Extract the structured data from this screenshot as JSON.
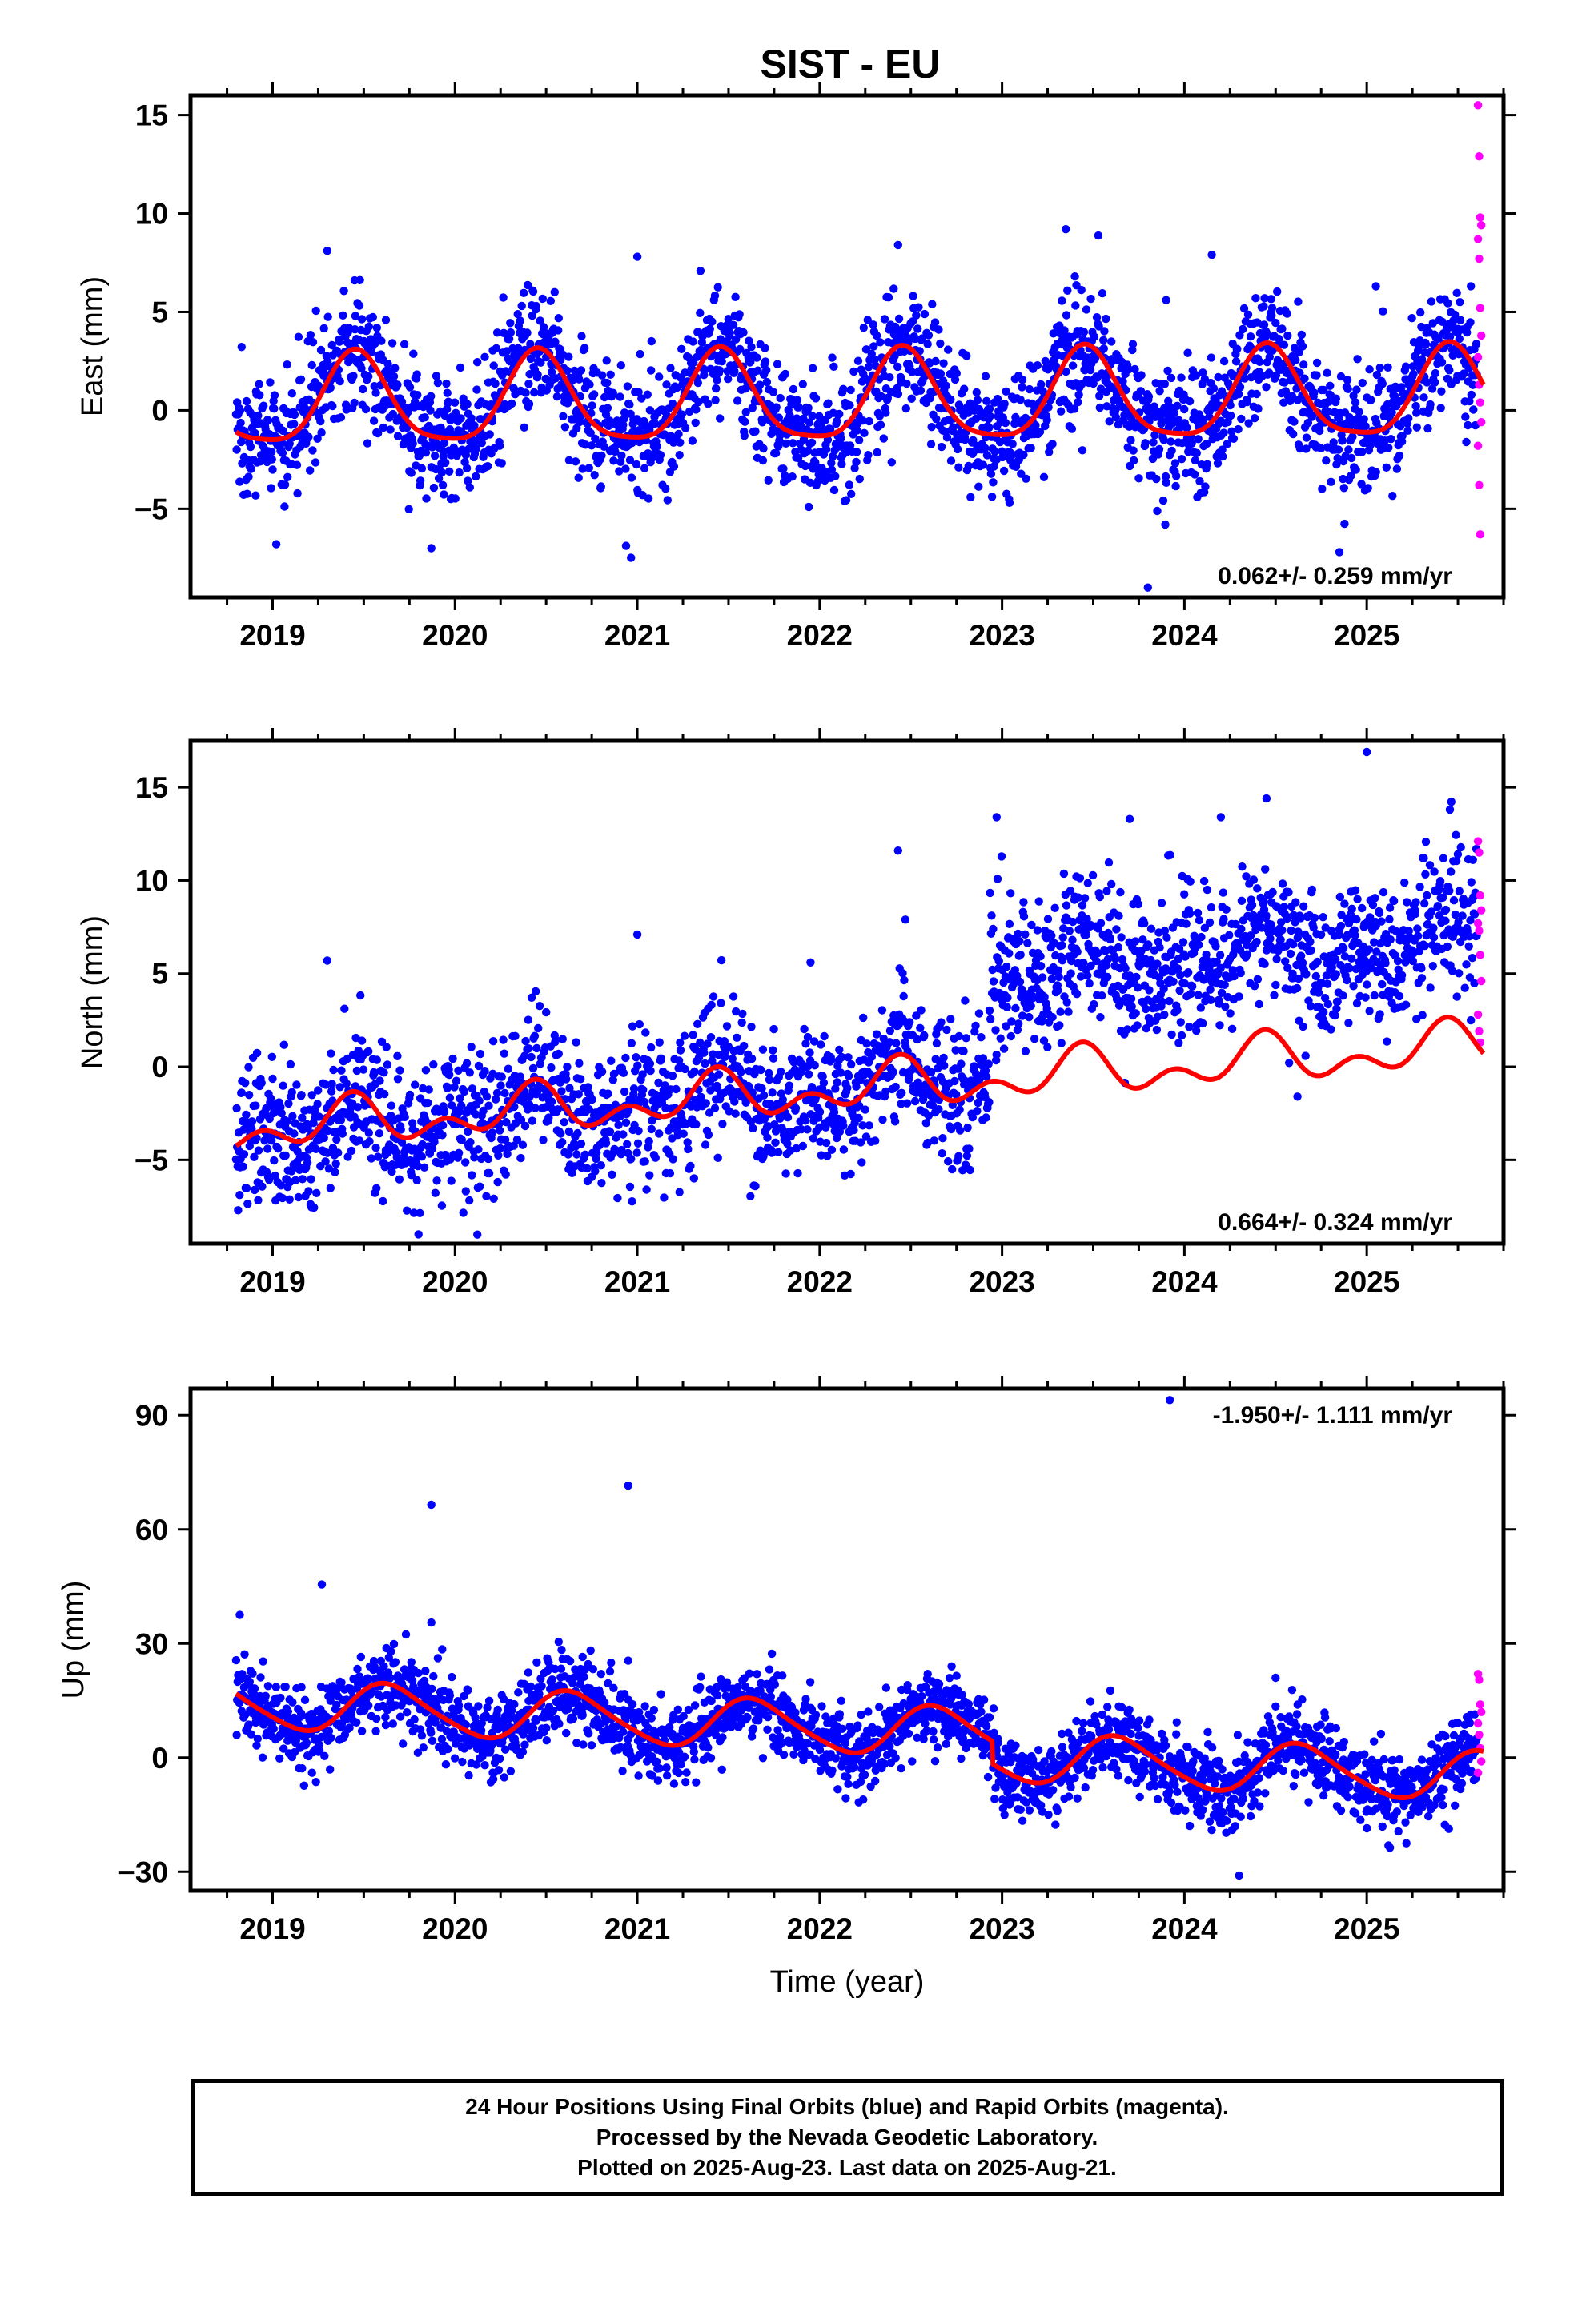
{
  "title": "SIST - EU",
  "colors": {
    "final_orbits": "#0000ff",
    "rapid_orbits": "#ff00ff",
    "model_fit": "#ff0000",
    "frame": "#000000"
  },
  "footer": {
    "line1": "24 Hour Positions Using Final Orbits (blue) and Rapid Orbits (magenta).",
    "line2": "Processed by the Nevada Geodetic Laboratory.",
    "line3": "Plotted on 2025-Aug-23. Last data on 2025-Aug-21."
  },
  "chart_data": [
    {
      "type": "scatter",
      "component": "east",
      "title": "SIST - EU",
      "ylabel": "East (mm)",
      "xlabel": "",
      "xlim": [
        2018.55,
        2025.75
      ],
      "ylim": [
        -9.5,
        16.0
      ],
      "xticks": [
        2019,
        2020,
        2021,
        2022,
        2023,
        2024,
        2025
      ],
      "xtick_labels": [
        "2019",
        "2020",
        "2021",
        "2022",
        "2023",
        "2024",
        "2025"
      ],
      "yticks": [
        -5,
        0,
        5,
        10,
        15
      ],
      "ytick_labels": [
        "−5",
        "0",
        "5",
        "10",
        "15"
      ],
      "rate_text": "0.062+/- 0.259 mm/yr",
      "rate_mm_yr": 0.062,
      "rate_sigma": 0.259,
      "data_start": 2018.8,
      "data_end": 2025.64,
      "model": {
        "name": "fit",
        "offset": 0.5,
        "trend": 0.062,
        "annual_cos": -2.2,
        "annual_sin": 0.6,
        "semiannual_cos": 0.4,
        "semiannual_sin": -0.3,
        "steps": []
      },
      "scatter_sigma": 1.6,
      "rapid_orbit_values": [
        15.5,
        12.9,
        9.8,
        9.4,
        8.7,
        7.7,
        5.2,
        3.8,
        2.7,
        1.3,
        0.4,
        -0.6,
        -1.8,
        -3.8,
        -6.3
      ],
      "outliers": [
        {
          "x": 2019.45,
          "y": 6.6
        },
        {
          "x": 2019.3,
          "y": 8.1
        },
        {
          "x": 2021.0,
          "y": 7.8
        },
        {
          "x": 2023.35,
          "y": 9.2
        },
        {
          "x": 2022.43,
          "y": 8.4
        },
        {
          "x": 2024.15,
          "y": 7.9
        },
        {
          "x": 2024.85,
          "y": -7.2
        },
        {
          "x": 2023.8,
          "y": -9.0
        },
        {
          "x": 2019.87,
          "y": -7.0
        },
        {
          "x": 2019.02,
          "y": -6.8
        },
        {
          "x": 2023.9,
          "y": 5.6
        },
        {
          "x": 2025.05,
          "y": 6.3
        }
      ],
      "series": [
        {
          "name": "",
          "role": "final_orbits"
        },
        {
          "name": "",
          "role": "rapid_orbits"
        },
        {
          "name": "",
          "role": "model_fit"
        }
      ]
    },
    {
      "type": "scatter",
      "component": "north",
      "ylabel": "North (mm)",
      "xlabel": "",
      "xlim": [
        2018.55,
        2025.75
      ],
      "ylim": [
        -9.5,
        17.5
      ],
      "xticks": [
        2019,
        2020,
        2021,
        2022,
        2023,
        2024,
        2025
      ],
      "xtick_labels": [
        "2019",
        "2020",
        "2021",
        "2022",
        "2023",
        "2024",
        "2025"
      ],
      "yticks": [
        -5,
        0,
        5,
        10,
        15
      ],
      "ytick_labels": [
        "−5",
        "0",
        "5",
        "10",
        "15"
      ],
      "rate_text": "0.664+/- 0.324 mm/yr",
      "rate_mm_yr": 0.664,
      "rate_sigma": 0.324,
      "data_start": 2018.8,
      "data_end": 2025.64,
      "model": {
        "name": "fit",
        "offset": -1.3,
        "trend": 0.664,
        "annual_cos": -0.8,
        "annual_sin": 0.4,
        "semiannual_cos": 0.6,
        "semiannual_sin": -0.5,
        "steps": [
          {
            "x": 2022.95,
            "y": 0.0
          }
        ]
      },
      "data_steps": [
        {
          "x": 2022.93,
          "y": 5.8
        }
      ],
      "scatter_sigma": 1.9,
      "rapid_orbit_values": [
        12.1,
        11.5,
        9.2,
        8.4,
        7.7,
        7.3,
        6.0,
        4.6,
        2.8,
        1.9,
        1.3
      ],
      "outliers": [
        {
          "x": 2025.0,
          "y": 16.9
        },
        {
          "x": 2024.45,
          "y": 14.4
        },
        {
          "x": 2022.97,
          "y": 13.4
        },
        {
          "x": 2024.2,
          "y": 13.4
        },
        {
          "x": 2023.7,
          "y": 13.3
        },
        {
          "x": 2022.43,
          "y": 11.6
        },
        {
          "x": 2022.47,
          "y": 7.9
        },
        {
          "x": 2021.0,
          "y": 7.1
        },
        {
          "x": 2019.3,
          "y": 5.7
        },
        {
          "x": 2021.95,
          "y": 5.6
        },
        {
          "x": 2019.8,
          "y": -9.0
        },
        {
          "x": 2024.62,
          "y": -1.6
        }
      ],
      "series": [
        {
          "name": "",
          "role": "final_orbits"
        },
        {
          "name": "",
          "role": "rapid_orbits"
        },
        {
          "name": "",
          "role": "model_fit"
        }
      ]
    },
    {
      "type": "scatter",
      "component": "up",
      "ylabel": "Up (mm)",
      "xlabel": "Time (year)",
      "xlim": [
        2018.55,
        2025.75
      ],
      "ylim": [
        -35,
        97
      ],
      "xticks": [
        2019,
        2020,
        2021,
        2022,
        2023,
        2024,
        2025
      ],
      "xtick_labels": [
        "2019",
        "2020",
        "2021",
        "2022",
        "2023",
        "2024",
        "2025"
      ],
      "yticks": [
        -30,
        0,
        30,
        60,
        90
      ],
      "ytick_labels": [
        "−30",
        "0",
        "30",
        "60",
        "90"
      ],
      "rate_text": "-1.950+/- 1.111 mm/yr",
      "rate_mm_yr": -1.95,
      "rate_sigma": 1.111,
      "data_start": 2018.8,
      "data_end": 2025.64,
      "model": {
        "name": "fit",
        "offset": 8.0,
        "trend": -1.95,
        "annual_cos": -4.0,
        "annual_sin": -5.0,
        "semiannual_cos": 0.8,
        "semiannual_sin": 0.5,
        "steps": [
          {
            "x": 2022.95,
            "y": -6.0
          }
        ]
      },
      "scatter_sigma": 5.2,
      "rapid_orbit_values": [
        22.0,
        20.5,
        14.0,
        12.0,
        9.0,
        6.0,
        2.5,
        -1.0,
        -4.0
      ],
      "outliers": [
        {
          "x": 2023.92,
          "y": 94.0
        },
        {
          "x": 2020.95,
          "y": 71.5
        },
        {
          "x": 2019.87,
          "y": 66.5
        },
        {
          "x": 2019.27,
          "y": 45.5
        },
        {
          "x": 2018.82,
          "y": 37.5
        },
        {
          "x": 2019.87,
          "y": 35.5
        },
        {
          "x": 2019.93,
          "y": 28.5
        },
        {
          "x": 2020.7,
          "y": 26.5
        },
        {
          "x": 2020.95,
          "y": 25.5
        },
        {
          "x": 2024.5,
          "y": 21.0
        },
        {
          "x": 2022.75,
          "y": 21.5
        },
        {
          "x": 2024.3,
          "y": -31.0
        }
      ],
      "series": [
        {
          "name": "",
          "role": "final_orbits"
        },
        {
          "name": "",
          "role": "rapid_orbits"
        },
        {
          "name": "",
          "role": "model_fit"
        }
      ]
    }
  ]
}
